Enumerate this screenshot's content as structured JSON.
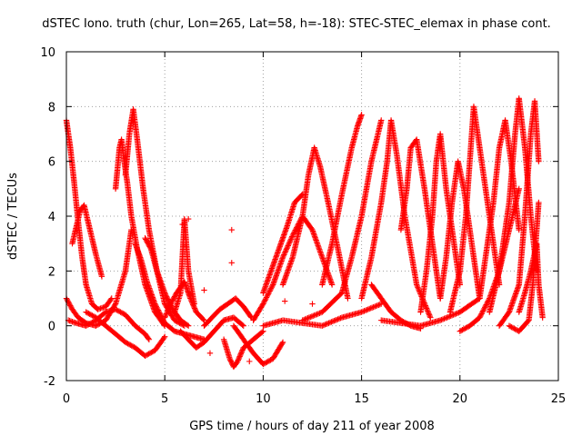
{
  "chart_data": {
    "type": "scatter",
    "title": "dSTEC Iono. truth (chur, Lon=265, Lat=58, h=-18): STEC-STEC_elemax in phase cont.",
    "xlabel": "GPS time / hours of day 211 of year 2008",
    "ylabel": "dSTEC  / TECUs",
    "xlim": [
      0,
      25
    ],
    "ylim": [
      -2,
      10
    ],
    "xticks": [
      0,
      5,
      10,
      15,
      20,
      25
    ],
    "yticks": [
      -2,
      0,
      2,
      4,
      6,
      8,
      10
    ],
    "grid": true,
    "marker": "+",
    "color": "#ff0000",
    "series": [
      {
        "x": [
          0.0,
          0.2,
          0.4,
          0.6,
          0.8,
          1.0,
          1.3,
          1.6,
          2.0,
          2.3
        ],
        "y": [
          7.5,
          6.5,
          5.2,
          3.8,
          2.5,
          1.5,
          0.8,
          0.6,
          0.7,
          1.0
        ]
      },
      {
        "x": [
          0.0,
          0.3,
          0.6,
          1.0,
          1.5,
          2.0,
          2.5,
          3.0,
          3.3
        ],
        "y": [
          1.0,
          0.6,
          0.3,
          0.1,
          0.0,
          0.2,
          0.8,
          2.0,
          3.5
        ]
      },
      {
        "x": [
          0.1,
          0.5,
          1.0,
          1.5,
          2.0,
          2.5,
          3.0,
          3.5,
          4.0,
          4.2
        ],
        "y": [
          0.2,
          0.1,
          0.0,
          0.2,
          0.5,
          0.6,
          0.4,
          0.0,
          -0.3,
          -0.5
        ]
      },
      {
        "x": [
          0.3,
          0.5,
          0.7,
          0.9,
          1.2,
          1.5,
          1.8
        ],
        "y": [
          3.0,
          3.6,
          4.2,
          4.4,
          3.5,
          2.6,
          1.8
        ]
      },
      {
        "x": [
          1.0,
          1.5,
          2.0,
          2.5,
          3.0,
          3.5,
          4.0,
          4.5,
          5.0
        ],
        "y": [
          0.5,
          0.3,
          0.0,
          -0.3,
          -0.6,
          -0.8,
          -1.1,
          -0.9,
          -0.4
        ]
      },
      {
        "x": [
          2.5,
          2.7,
          2.8,
          2.9,
          3.1,
          3.3,
          3.6,
          4.0,
          4.5,
          5.0
        ],
        "y": [
          5.0,
          6.5,
          6.8,
          6.2,
          5.2,
          4.0,
          2.8,
          1.5,
          0.5,
          0.0
        ]
      },
      {
        "x": [
          3.0,
          3.2,
          3.4,
          3.6,
          3.9,
          4.2,
          4.6,
          5.0,
          5.5,
          6.0
        ],
        "y": [
          5.5,
          7.0,
          7.9,
          6.8,
          5.0,
          3.5,
          2.0,
          0.8,
          0.2,
          0.0
        ]
      },
      {
        "x": [
          3.5,
          3.8,
          4.1,
          4.5,
          5.0,
          5.5,
          6.0,
          6.5,
          7.0
        ],
        "y": [
          3.0,
          2.4,
          1.6,
          0.8,
          0.1,
          -0.2,
          -0.3,
          -0.4,
          -0.5
        ]
      },
      {
        "x": [
          4.0,
          4.3,
          4.6,
          5.0,
          5.4,
          5.8,
          6.2
        ],
        "y": [
          3.2,
          2.8,
          2.0,
          1.2,
          0.6,
          0.2,
          0.0
        ]
      },
      {
        "x": [
          5.0,
          5.3,
          5.6,
          6.0,
          6.3,
          6.6,
          7.0
        ],
        "y": [
          0.3,
          0.8,
          1.2,
          1.6,
          1.0,
          0.5,
          0.2
        ]
      },
      {
        "x": [
          5.5,
          5.8,
          6.0,
          6.2,
          6.5
        ],
        "y": [
          0.5,
          1.2,
          3.9,
          2.0,
          0.8
        ]
      },
      {
        "x": [
          5.8,
          6.2,
          6.6,
          7.0,
          7.5,
          8.0,
          8.5,
          9.0
        ],
        "y": [
          -0.2,
          -0.5,
          -0.8,
          -0.6,
          -0.2,
          0.2,
          0.3,
          0.0
        ]
      },
      {
        "x": [
          7.0,
          7.4,
          7.8,
          8.2,
          8.6,
          9.0,
          9.4
        ],
        "y": [
          0.0,
          0.3,
          0.6,
          0.8,
          1.0,
          0.7,
          0.3
        ]
      },
      {
        "x": [
          8.0,
          8.3,
          8.5,
          8.7,
          9.0,
          9.5,
          10.0
        ],
        "y": [
          -0.5,
          -1.2,
          -1.5,
          -1.3,
          -0.8,
          -0.5,
          -0.2
        ]
      },
      {
        "x": [
          8.5,
          9.0,
          9.5,
          10.0,
          10.5,
          11.0
        ],
        "y": [
          0.0,
          -0.5,
          -1.0,
          -1.4,
          -1.2,
          -0.6
        ]
      },
      {
        "x": [
          9.5,
          10.0,
          10.5,
          11.0,
          11.5,
          12.0,
          12.5,
          13.0,
          13.5
        ],
        "y": [
          0.2,
          0.8,
          1.5,
          2.5,
          3.3,
          4.0,
          3.5,
          2.5,
          1.5
        ]
      },
      {
        "x": [
          10.0,
          10.4,
          10.8,
          11.2,
          11.6,
          12.0
        ],
        "y": [
          1.2,
          2.0,
          2.8,
          3.6,
          4.5,
          4.8
        ]
      },
      {
        "x": [
          11.0,
          11.5,
          12.0,
          12.3,
          12.6,
          12.9,
          13.3,
          13.8,
          14.3
        ],
        "y": [
          1.5,
          2.5,
          4.0,
          5.5,
          6.5,
          5.8,
          4.5,
          2.8,
          1.0
        ]
      },
      {
        "x": [
          10.0,
          11.0,
          12.0,
          13.0,
          14.0,
          15.0,
          16.0
        ],
        "y": [
          0.0,
          0.2,
          0.1,
          0.0,
          0.3,
          0.5,
          0.8
        ]
      },
      {
        "x": [
          12.0,
          13.0,
          14.0,
          14.5,
          15.0,
          15.5,
          16.0
        ],
        "y": [
          0.2,
          0.5,
          1.2,
          2.5,
          4.0,
          6.0,
          7.5
        ]
      },
      {
        "x": [
          13.0,
          13.5,
          14.0,
          14.5,
          14.8,
          15.0
        ],
        "y": [
          1.5,
          3.0,
          4.8,
          6.5,
          7.3,
          7.7
        ]
      },
      {
        "x": [
          15.0,
          15.5,
          16.0,
          16.3,
          16.5,
          16.8,
          17.2,
          17.8,
          18.5
        ],
        "y": [
          1.0,
          2.5,
          4.5,
          6.0,
          7.5,
          6.2,
          4.0,
          1.5,
          0.3
        ]
      },
      {
        "x": [
          15.5,
          16.0,
          16.5,
          17.0,
          17.5,
          18.0
        ],
        "y": [
          1.5,
          1.0,
          0.5,
          0.2,
          0.0,
          -0.1
        ]
      },
      {
        "x": [
          16.0,
          17.0,
          18.0,
          19.0,
          20.0,
          21.0
        ],
        "y": [
          0.2,
          0.1,
          0.0,
          0.2,
          0.5,
          1.0
        ]
      },
      {
        "x": [
          17.0,
          17.3,
          17.5,
          17.8,
          18.2,
          18.6,
          19.0
        ],
        "y": [
          3.5,
          5.0,
          6.5,
          6.8,
          5.0,
          3.0,
          1.0
        ]
      },
      {
        "x": [
          18.0,
          18.3,
          18.6,
          18.8,
          19.0,
          19.3,
          19.7,
          20.0
        ],
        "y": [
          0.5,
          2.0,
          4.0,
          6.0,
          7.0,
          5.0,
          3.0,
          1.5
        ]
      },
      {
        "x": [
          19.0,
          19.3,
          19.6,
          19.9,
          20.2,
          20.5,
          20.8,
          21.0
        ],
        "y": [
          1.0,
          2.5,
          4.5,
          6.0,
          5.0,
          3.5,
          2.0,
          1.0
        ]
      },
      {
        "x": [
          19.5,
          20.0,
          20.3,
          20.5,
          20.7,
          21.0,
          21.5,
          22.0
        ],
        "y": [
          0.5,
          2.0,
          4.0,
          6.0,
          8.0,
          6.5,
          4.0,
          1.5
        ]
      },
      {
        "x": [
          20.0,
          20.5,
          21.0,
          21.5,
          22.0,
          22.5,
          23.0
        ],
        "y": [
          -0.2,
          0.0,
          0.3,
          1.0,
          2.0,
          3.5,
          5.0
        ]
      },
      {
        "x": [
          21.0,
          21.3,
          21.7,
          22.0,
          22.3,
          22.6,
          23.0
        ],
        "y": [
          1.0,
          2.5,
          4.5,
          6.5,
          7.5,
          6.0,
          3.5
        ]
      },
      {
        "x": [
          21.5,
          22.0,
          22.5,
          22.8,
          23.0,
          23.3,
          23.6,
          23.9
        ],
        "y": [
          0.5,
          2.0,
          4.5,
          7.0,
          8.3,
          6.5,
          4.0,
          2.0
        ]
      },
      {
        "x": [
          22.0,
          22.5,
          23.0,
          23.3,
          23.6,
          23.8,
          24.0
        ],
        "y": [
          0.0,
          0.5,
          1.5,
          4.0,
          7.0,
          8.2,
          6.0
        ]
      },
      {
        "x": [
          22.5,
          23.0,
          23.5,
          23.7,
          23.9,
          24.0
        ],
        "y": [
          0.0,
          -0.2,
          0.2,
          1.5,
          3.5,
          4.5
        ]
      },
      {
        "x": [
          23.0,
          23.3,
          23.6,
          23.9,
          24.0,
          24.2
        ],
        "y": [
          0.5,
          1.2,
          2.0,
          3.0,
          1.5,
          0.3
        ]
      }
    ],
    "scatter": [
      {
        "x": 8.4,
        "y": 3.5
      },
      {
        "x": 8.4,
        "y": 2.3
      },
      {
        "x": 9.3,
        "y": -1.3
      },
      {
        "x": 5.9,
        "y": 3.7
      },
      {
        "x": 6.2,
        "y": 3.9
      },
      {
        "x": 7.0,
        "y": 1.3
      },
      {
        "x": 7.3,
        "y": -1.0
      },
      {
        "x": 11.1,
        "y": 0.9
      },
      {
        "x": 12.5,
        "y": 0.8
      }
    ]
  }
}
